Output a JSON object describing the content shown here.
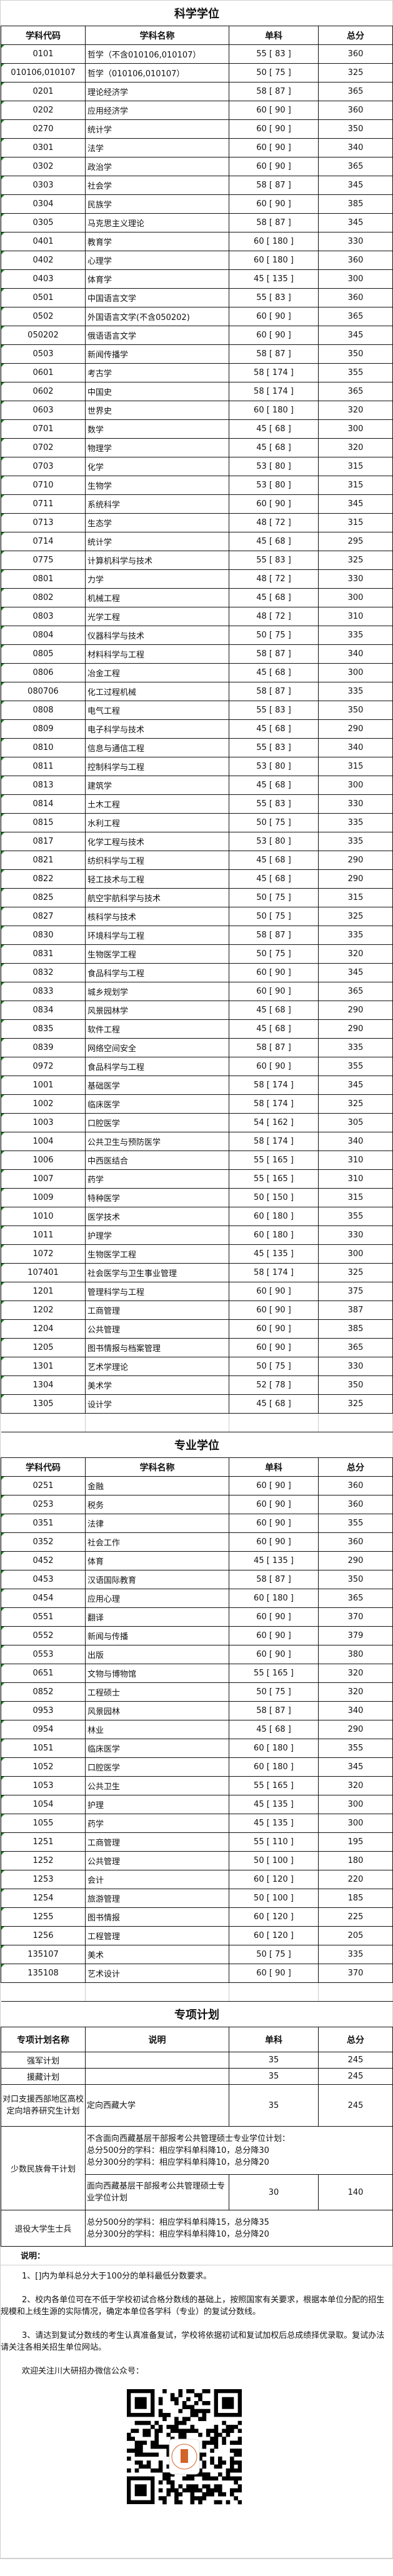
{
  "academic": {
    "title": "科学学位",
    "headers": [
      "学科代码",
      "学科名称",
      "单科",
      "总分"
    ],
    "rows": [
      [
        "0101",
        "哲学（不含010106,010107）",
        "55 [ 83 ]",
        "360"
      ],
      [
        "010106,010107",
        "哲学（010106,010107）",
        "50 [ 75 ]",
        "325"
      ],
      [
        "0201",
        "理论经济学",
        "58 [ 87 ]",
        "365"
      ],
      [
        "0202",
        "应用经济学",
        "60 [ 90 ]",
        "360"
      ],
      [
        "0270",
        "统计学",
        "60 [ 90 ]",
        "350"
      ],
      [
        "0301",
        "法学",
        "60 [ 90 ]",
        "340"
      ],
      [
        "0302",
        "政治学",
        "60 [ 90 ]",
        "365"
      ],
      [
        "0303",
        "社会学",
        "58 [ 87 ]",
        "345"
      ],
      [
        "0304",
        "民族学",
        "60 [ 90 ]",
        "385"
      ],
      [
        "0305",
        "马克思主义理论",
        "58 [ 87 ]",
        "345"
      ],
      [
        "0401",
        "教育学",
        "60 [ 180 ]",
        "330"
      ],
      [
        "0402",
        "心理学",
        "60 [ 180 ]",
        "360"
      ],
      [
        "0403",
        "体育学",
        "45 [ 135 ]",
        "300"
      ],
      [
        "0501",
        "中国语言文学",
        "55 [ 83 ]",
        "360"
      ],
      [
        "0502",
        "外国语言文学(不含050202)",
        "60 [ 90 ]",
        "365"
      ],
      [
        "050202",
        "俄语语言文学",
        "60 [ 90 ]",
        "345"
      ],
      [
        "0503",
        "新闻传播学",
        "58 [ 87 ]",
        "350"
      ],
      [
        "0601",
        "考古学",
        "58 [ 174 ]",
        "355"
      ],
      [
        "0602",
        "中国史",
        "58 [ 174 ]",
        "365"
      ],
      [
        "0603",
        "世界史",
        "60 [ 180 ]",
        "320"
      ],
      [
        "0701",
        "数学",
        "45 [ 68 ]",
        "300"
      ],
      [
        "0702",
        "物理学",
        "45 [ 68 ]",
        "320"
      ],
      [
        "0703",
        "化学",
        "53 [ 80 ]",
        "315"
      ],
      [
        "0710",
        "生物学",
        "53 [ 80 ]",
        "315"
      ],
      [
        "0711",
        "系统科学",
        "60 [ 90 ]",
        "345"
      ],
      [
        "0713",
        "生态学",
        "48 [ 72 ]",
        "315"
      ],
      [
        "0714",
        "统计学",
        "45 [ 68 ]",
        "295"
      ],
      [
        "0775",
        "计算机科学与技术",
        "55 [ 83 ]",
        "325"
      ],
      [
        "0801",
        "力学",
        "48 [ 72 ]",
        "330"
      ],
      [
        "0802",
        "机械工程",
        "45 [ 68 ]",
        "300"
      ],
      [
        "0803",
        "光学工程",
        "48 [ 72 ]",
        "310"
      ],
      [
        "0804",
        "仪器科学与技术",
        "50 [ 75 ]",
        "335"
      ],
      [
        "0805",
        "材料科学与工程",
        "58 [ 87 ]",
        "340"
      ],
      [
        "0806",
        "冶金工程",
        "45 [ 68 ]",
        "300"
      ],
      [
        "080706",
        "化工过程机械",
        "58 [ 87 ]",
        "335"
      ],
      [
        "0808",
        "电气工程",
        "55 [ 83 ]",
        "350"
      ],
      [
        "0809",
        "电子科学与技术",
        "45 [ 68 ]",
        "290"
      ],
      [
        "0810",
        "信息与通信工程",
        "55 [ 83 ]",
        "340"
      ],
      [
        "0811",
        "控制科学与工程",
        "53 [ 80 ]",
        "315"
      ],
      [
        "0813",
        "建筑学",
        "45 [ 68 ]",
        "300"
      ],
      [
        "0814",
        "土木工程",
        "55 [ 83 ]",
        "330"
      ],
      [
        "0815",
        "水利工程",
        "50 [ 75 ]",
        "335"
      ],
      [
        "0817",
        "化学工程与技术",
        "53 [ 80 ]",
        "335"
      ],
      [
        "0821",
        "纺织科学与工程",
        "45 [ 68 ]",
        "290"
      ],
      [
        "0822",
        "轻工技术与工程",
        "45 [ 68 ]",
        "290"
      ],
      [
        "0825",
        "航空宇航科学与技术",
        "50 [ 75 ]",
        "315"
      ],
      [
        "0827",
        "核科学与技术",
        "50 [ 75 ]",
        "325"
      ],
      [
        "0830",
        "环境科学与工程",
        "58 [ 87 ]",
        "335"
      ],
      [
        "0831",
        "生物医学工程",
        "50 [ 75 ]",
        "320"
      ],
      [
        "0832",
        "食品科学与工程",
        "60 [ 90 ]",
        "345"
      ],
      [
        "0833",
        "城乡规划学",
        "60 [ 90 ]",
        "365"
      ],
      [
        "0834",
        "风景园林学",
        "45 [ 68 ]",
        "290"
      ],
      [
        "0835",
        "软件工程",
        "45 [ 68 ]",
        "290"
      ],
      [
        "0839",
        "网络空间安全",
        "58 [ 87 ]",
        "335"
      ],
      [
        "0972",
        "食品科学与工程",
        "60 [ 90 ]",
        "355"
      ],
      [
        "1001",
        "基础医学",
        "58 [ 174 ]",
        "345"
      ],
      [
        "1002",
        "临床医学",
        "58 [ 174 ]",
        "325"
      ],
      [
        "1003",
        "口腔医学",
        "54 [ 162 ]",
        "305"
      ],
      [
        "1004",
        "公共卫生与预防医学",
        "58 [ 174 ]",
        "340"
      ],
      [
        "1006",
        "中西医结合",
        "55 [ 165 ]",
        "310"
      ],
      [
        "1007",
        "药学",
        "55 [ 165 ]",
        "310"
      ],
      [
        "1009",
        "特种医学",
        "50 [ 150 ]",
        "315"
      ],
      [
        "1010",
        "医学技术",
        "60 [ 180 ]",
        "355"
      ],
      [
        "1011",
        "护理学",
        "60 [ 180 ]",
        "330"
      ],
      [
        "1072",
        "生物医学工程",
        "45 [ 135 ]",
        "300"
      ],
      [
        "107401",
        "社会医学与卫生事业管理",
        "58 [ 174 ]",
        "325"
      ],
      [
        "1201",
        "管理科学与工程",
        "60 [ 90 ]",
        "375"
      ],
      [
        "1202",
        "工商管理",
        "60 [ 90 ]",
        "387"
      ],
      [
        "1204",
        "公共管理",
        "60 [ 90 ]",
        "385"
      ],
      [
        "1205",
        "图书情报与档案管理",
        "60 [ 90 ]",
        "365"
      ],
      [
        "1301",
        "艺术学理论",
        "50 [ 75 ]",
        "330"
      ],
      [
        "1304",
        "美术学",
        "52 [ 78 ]",
        "350"
      ],
      [
        "1305",
        "设计学",
        "45 [ 68 ]",
        "325"
      ]
    ]
  },
  "professional": {
    "title": "专业学位",
    "headers": [
      "学科代码",
      "学科名称",
      "单科",
      "总分"
    ],
    "rows": [
      [
        "0251",
        "金融",
        "60 [ 90 ]",
        "360"
      ],
      [
        "0253",
        "税务",
        "60 [ 90 ]",
        "360"
      ],
      [
        "0351",
        "法律",
        "60 [ 90 ]",
        "355"
      ],
      [
        "0352",
        "社会工作",
        "60 [ 90 ]",
        "360"
      ],
      [
        "0452",
        "体育",
        "45 [ 135 ]",
        "290"
      ],
      [
        "0453",
        "汉语国际教育",
        "58 [ 87 ]",
        "350"
      ],
      [
        "0454",
        "应用心理",
        "60 [ 180 ]",
        "365"
      ],
      [
        "0551",
        "翻译",
        "60 [ 90 ]",
        "370"
      ],
      [
        "0552",
        "新闻与传播",
        "60 [ 90 ]",
        "379"
      ],
      [
        "0553",
        "出版",
        "60 [ 90 ]",
        "380"
      ],
      [
        "0651",
        "文物与博物馆",
        "55 [ 165 ]",
        "320"
      ],
      [
        "0852",
        "工程硕士",
        "50 [ 75 ]",
        "320"
      ],
      [
        "0953",
        "风景园林",
        "58 [ 87 ]",
        "340"
      ],
      [
        "0954",
        "林业",
        "45 [ 68 ]",
        "290"
      ],
      [
        "1051",
        "临床医学",
        "60 [ 180 ]",
        "355"
      ],
      [
        "1052",
        "口腔医学",
        "60 [ 180 ]",
        "345"
      ],
      [
        "1053",
        "公共卫生",
        "55 [ 165 ]",
        "320"
      ],
      [
        "1054",
        "护理",
        "45 [ 135 ]",
        "300"
      ],
      [
        "1055",
        "药学",
        "45 [ 135 ]",
        "300"
      ],
      [
        "1251",
        "工商管理",
        "55 [ 110 ]",
        "195"
      ],
      [
        "1252",
        "公共管理",
        "50 [ 100 ]",
        "180"
      ],
      [
        "1253",
        "会计",
        "60 [ 120 ]",
        "220"
      ],
      [
        "1254",
        "旅游管理",
        "50 [ 100 ]",
        "185"
      ],
      [
        "1255",
        "图书情报",
        "60 [ 120 ]",
        "225"
      ],
      [
        "1256",
        "工程管理",
        "60 [ 120 ]",
        "205"
      ],
      [
        "135107",
        "美术",
        "50 [ 75 ]",
        "335"
      ],
      [
        "135108",
        "艺术设计",
        "60 [ 90 ]",
        "370"
      ]
    ]
  },
  "special": {
    "title": "专项计划",
    "headers": [
      "专项计划名称",
      "说明",
      "单科",
      "总分"
    ],
    "qiangjun": {
      "name": "强军计划",
      "desc": "",
      "single": "35",
      "total": "245"
    },
    "yuanzang": {
      "name": "援藏计划",
      "desc": "",
      "single": "35",
      "total": "245"
    },
    "duikou": {
      "name": "对口支援西部地区高校定向培养研究生计划",
      "desc": "定向西藏大学",
      "single": "35",
      "total": "245"
    },
    "minority": {
      "name": "少数民族骨干计划",
      "desc1_line1": "不含面向西藏基层干部报考公共管理硕士专业学位计划：",
      "desc1_line2": "总分500分的学科：相应学科单科降10，总分降30",
      "desc1_line3": "总分300分的学科：相应学科单科降10，总分降20",
      "desc2": "面向西藏基层干部报考公共管理硕士专业学位计划",
      "single": "30",
      "total": "140"
    },
    "veteran": {
      "name": "退役大学生士兵",
      "line1": "总分500分的学科：相应学科单科降15，总分降35",
      "line2": "总分300分的学科：相应学科单科降10，总分降20"
    }
  },
  "notes": {
    "heading": "说明：",
    "items": [
      "1、[]内为单科总分大于100分的单科最低分数要求。",
      "2、校内各单位可在不低于学校初试合格分数线的基础上，按照国家有关要求，根据本单位分配的招生规模和上线生源的实际情况，确定本单位各学科（专业）的复试分数线。",
      "3、请达到复试分数线的考生认真准备复试，学校将依据初试和复试加权后总成绩择优录取。复试办法请关注各相关招生单位网站。",
      "欢迎关注川大研招办微信公众号："
    ]
  },
  "qr": {
    "icon": "wechat-qr-code-icon",
    "accent": "#d2642a"
  }
}
